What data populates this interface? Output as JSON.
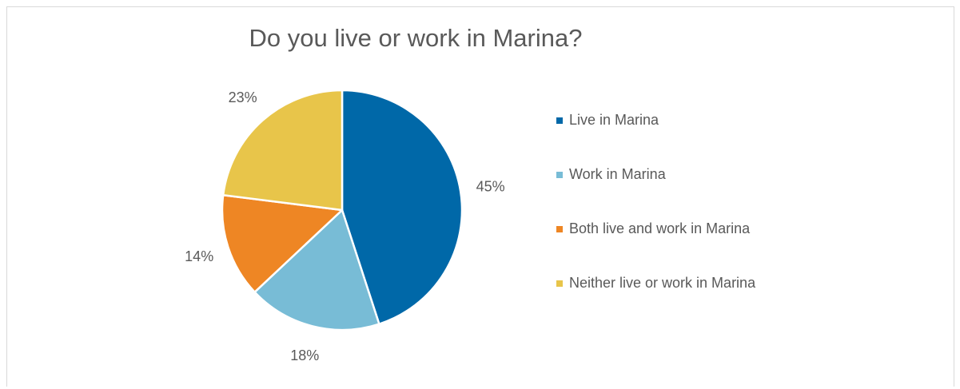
{
  "chart_data": {
    "type": "pie",
    "title": "Do you live or work in Marina?",
    "categories": [
      "Live in Marina",
      "Work in Marina",
      "Both live and work in Marina",
      "Neither live or work in Marina"
    ],
    "values": [
      45,
      18,
      14,
      23
    ],
    "data_labels": [
      "45%",
      "18%",
      "14%",
      "23%"
    ],
    "colors": [
      "#0068A8",
      "#78BCD6",
      "#EE8624",
      "#E8C54A"
    ],
    "legend_position": "right",
    "legend_marker": "square"
  }
}
